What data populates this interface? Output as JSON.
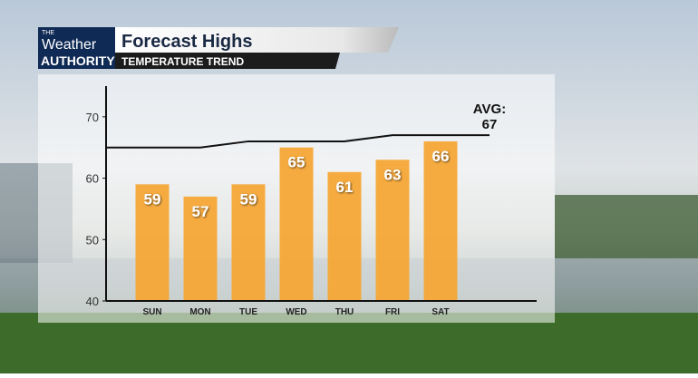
{
  "brand": {
    "small": "THE",
    "top": "Weather",
    "bottom": "AUTHORITY"
  },
  "chart_data": {
    "type": "bar",
    "title": "Forecast Highs",
    "subtitle": "TEMPERATURE TREND",
    "categories": [
      "SUN",
      "MON",
      "TUE",
      "WED",
      "THU",
      "FRI",
      "SAT"
    ],
    "values": [
      59,
      57,
      59,
      65,
      61,
      63,
      66
    ],
    "color": "#f6a531",
    "ylim": [
      40,
      75
    ],
    "yticks": [
      40,
      50,
      60,
      70
    ],
    "average": {
      "label": "AVG:",
      "value": 67,
      "values": [
        65,
        65,
        66,
        66,
        66,
        67,
        67
      ],
      "color": "#111111"
    }
  }
}
